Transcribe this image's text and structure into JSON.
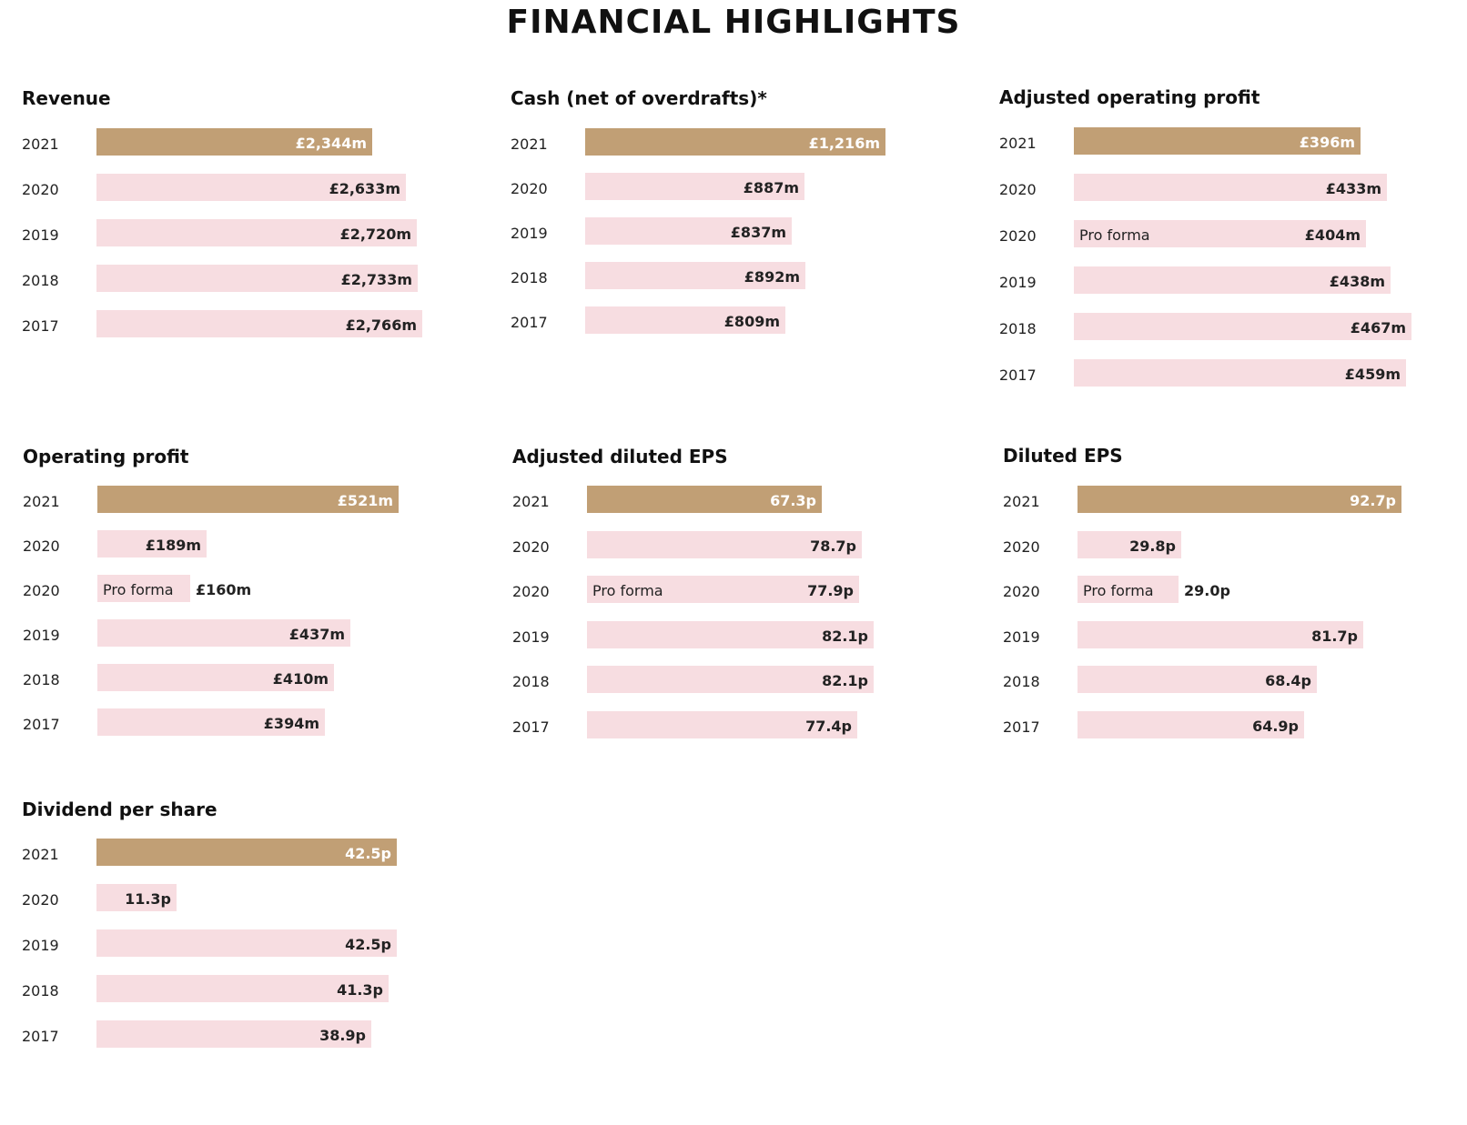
{
  "page": {
    "title": "FINANCIAL HIGHLIGHTS"
  },
  "colors": {
    "current_year_bar": "#c19f75",
    "prior_year_bar": "#f7dde1"
  },
  "chart_data": [
    {
      "type": "bar",
      "title": "Revenue",
      "unit": "£m",
      "rows": [
        {
          "year": "2021",
          "value": 2344,
          "label": "£2,344m",
          "current": true
        },
        {
          "year": "2020",
          "value": 2633,
          "label": "£2,633m"
        },
        {
          "year": "2019",
          "value": 2720,
          "label": "£2,720m"
        },
        {
          "year": "2018",
          "value": 2733,
          "label": "£2,733m"
        },
        {
          "year": "2017",
          "value": 2766,
          "label": "£2,766m"
        }
      ]
    },
    {
      "type": "bar",
      "title": "Cash (net of overdrafts)*",
      "unit": "£m",
      "rows": [
        {
          "year": "2021",
          "value": 1216,
          "label": "£1,216m",
          "current": true
        },
        {
          "year": "2020",
          "value": 887,
          "label": "£887m"
        },
        {
          "year": "2019",
          "value": 837,
          "label": "£837m"
        },
        {
          "year": "2018",
          "value": 892,
          "label": "£892m"
        },
        {
          "year": "2017",
          "value": 809,
          "label": "£809m"
        }
      ]
    },
    {
      "type": "bar",
      "title": "Adjusted operating profit",
      "unit": "£m",
      "rows": [
        {
          "year": "2021",
          "value": 396,
          "label": "£396m",
          "current": true
        },
        {
          "year": "2020",
          "value": 433,
          "label": "£433m"
        },
        {
          "year": "2020",
          "value": 404,
          "label": "£404m",
          "note": "Pro forma"
        },
        {
          "year": "2019",
          "value": 438,
          "label": "£438m"
        },
        {
          "year": "2018",
          "value": 467,
          "label": "£467m"
        },
        {
          "year": "2017",
          "value": 459,
          "label": "£459m"
        }
      ]
    },
    {
      "type": "bar",
      "title": "Operating profit",
      "unit": "£m",
      "rows": [
        {
          "year": "2021",
          "value": 521,
          "label": "£521m",
          "current": true
        },
        {
          "year": "2020",
          "value": 189,
          "label": "£189m"
        },
        {
          "year": "2020",
          "value": 160,
          "label": "£160m",
          "note": "Pro forma"
        },
        {
          "year": "2019",
          "value": 437,
          "label": "£437m"
        },
        {
          "year": "2018",
          "value": 410,
          "label": "£410m"
        },
        {
          "year": "2017",
          "value": 394,
          "label": "£394m"
        }
      ]
    },
    {
      "type": "bar",
      "title": "Adjusted diluted EPS",
      "unit": "p",
      "rows": [
        {
          "year": "2021",
          "value": 67.3,
          "label": "67.3p",
          "current": true
        },
        {
          "year": "2020",
          "value": 78.7,
          "label": "78.7p"
        },
        {
          "year": "2020",
          "value": 77.9,
          "label": "77.9p",
          "note": "Pro forma"
        },
        {
          "year": "2019",
          "value": 82.1,
          "label": "82.1p"
        },
        {
          "year": "2018",
          "value": 82.1,
          "label": "82.1p"
        },
        {
          "year": "2017",
          "value": 77.4,
          "label": "77.4p"
        }
      ]
    },
    {
      "type": "bar",
      "title": "Diluted EPS",
      "unit": "p",
      "rows": [
        {
          "year": "2021",
          "value": 92.7,
          "label": "92.7p",
          "current": true
        },
        {
          "year": "2020",
          "value": 29.8,
          "label": "29.8p"
        },
        {
          "year": "2020",
          "value": 29.0,
          "label": "29.0p",
          "note": "Pro forma"
        },
        {
          "year": "2019",
          "value": 81.7,
          "label": "81.7p"
        },
        {
          "year": "2018",
          "value": 68.4,
          "label": "68.4p"
        },
        {
          "year": "2017",
          "value": 64.9,
          "label": "64.9p"
        }
      ]
    },
    {
      "type": "bar",
      "title": "Dividend per share",
      "unit": "p",
      "rows": [
        {
          "year": "2021",
          "value": 42.5,
          "label": "42.5p",
          "current": true
        },
        {
          "year": "2020",
          "value": 11.3,
          "label": "11.3p"
        },
        {
          "year": "2019",
          "value": 42.5,
          "label": "42.5p"
        },
        {
          "year": "2018",
          "value": 41.3,
          "label": "41.3p"
        },
        {
          "year": "2017",
          "value": 38.9,
          "label": "38.9p"
        }
      ]
    }
  ]
}
